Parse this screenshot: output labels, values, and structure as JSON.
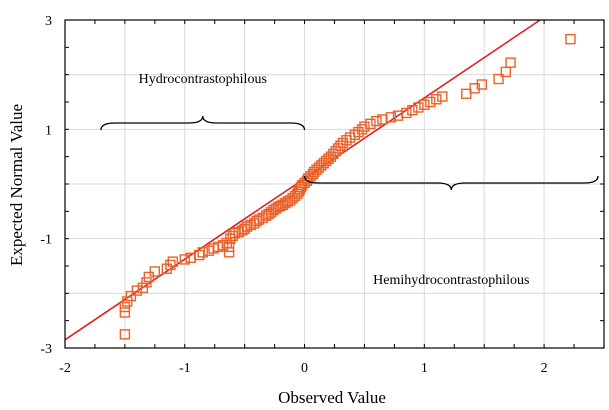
{
  "chart_data": {
    "type": "scatter",
    "title": "",
    "xlabel": "Observed Value",
    "ylabel": "Expected Normal Value",
    "xlim": [
      -2,
      2.5
    ],
    "ylim": [
      -3,
      3
    ],
    "xticks": [
      -2,
      -1,
      0,
      1,
      2
    ],
    "yticks": [
      -3,
      -1,
      1,
      3
    ],
    "xtick_labels": [
      "-2",
      "-1",
      "0",
      "1",
      "2"
    ],
    "ytick_labels": [
      "-3",
      "-1",
      "1",
      "3"
    ],
    "grid": true,
    "legend": "none",
    "colors": {
      "points": "#e8622a",
      "reference_line": "#e02020",
      "grid": "#d9d9d9"
    },
    "reference_line": {
      "name": "",
      "points": [
        [
          -2.0,
          -2.85
        ],
        [
          2.0,
          3.05
        ]
      ]
    },
    "annotations": [
      {
        "text": "Hydrocontrastophilous",
        "x_range": [
          -1.7,
          0.0
        ]
      },
      {
        "text": "Hemihydrocontrastophilous",
        "x_range": [
          0.0,
          2.45
        ]
      }
    ],
    "series": [
      {
        "marker": "open-square",
        "points": [
          [
            -1.5,
            -2.75
          ],
          [
            -1.5,
            -2.35
          ],
          [
            -1.48,
            -2.15
          ],
          [
            -1.5,
            -2.25
          ],
          [
            -1.45,
            -2.05
          ],
          [
            -1.4,
            -1.95
          ],
          [
            -1.35,
            -1.9
          ],
          [
            -1.32,
            -1.8
          ],
          [
            -1.3,
            -1.7
          ],
          [
            -1.25,
            -1.6
          ],
          [
            -1.15,
            -1.55
          ],
          [
            -1.12,
            -1.48
          ],
          [
            -1.1,
            -1.42
          ],
          [
            -1.0,
            -1.38
          ],
          [
            -0.95,
            -1.35
          ],
          [
            -0.88,
            -1.3
          ],
          [
            -0.85,
            -1.25
          ],
          [
            -0.8,
            -1.22
          ],
          [
            -0.76,
            -1.18
          ],
          [
            -0.72,
            -1.15
          ],
          [
            -0.68,
            -1.12
          ],
          [
            -0.65,
            -1.08
          ],
          [
            -0.62,
            -1.0
          ],
          [
            -0.63,
            -1.15
          ],
          [
            -0.63,
            -1.25
          ],
          [
            -0.6,
            -0.95
          ],
          [
            -0.58,
            -0.9
          ],
          [
            -0.55,
            -0.88
          ],
          [
            -0.52,
            -0.85
          ],
          [
            -0.5,
            -0.82
          ],
          [
            -0.48,
            -0.78
          ],
          [
            -0.45,
            -0.75
          ],
          [
            -0.42,
            -0.72
          ],
          [
            -0.4,
            -0.68
          ],
          [
            -0.38,
            -0.65
          ],
          [
            -0.35,
            -0.62
          ],
          [
            -0.32,
            -0.58
          ],
          [
            -0.3,
            -0.55
          ],
          [
            -0.28,
            -0.52
          ],
          [
            -0.26,
            -0.48
          ],
          [
            -0.24,
            -0.45
          ],
          [
            -0.22,
            -0.42
          ],
          [
            -0.2,
            -0.4
          ],
          [
            -0.18,
            -0.38
          ],
          [
            -0.16,
            -0.35
          ],
          [
            -0.14,
            -0.32
          ],
          [
            -0.12,
            -0.3
          ],
          [
            -0.1,
            -0.26
          ],
          [
            -0.08,
            -0.22
          ],
          [
            -0.06,
            -0.18
          ],
          [
            -0.05,
            -0.14
          ],
          [
            -0.04,
            -0.1
          ],
          [
            -0.03,
            -0.06
          ],
          [
            -0.02,
            -0.02
          ],
          [
            0.0,
            0.02
          ],
          [
            0.02,
            0.06
          ],
          [
            0.03,
            0.1
          ],
          [
            0.05,
            0.14
          ],
          [
            0.07,
            0.18
          ],
          [
            0.08,
            0.22
          ],
          [
            0.1,
            0.26
          ],
          [
            0.12,
            0.3
          ],
          [
            0.14,
            0.34
          ],
          [
            0.16,
            0.38
          ],
          [
            0.18,
            0.42
          ],
          [
            0.2,
            0.46
          ],
          [
            0.22,
            0.5
          ],
          [
            0.24,
            0.55
          ],
          [
            0.26,
            0.6
          ],
          [
            0.28,
            0.65
          ],
          [
            0.3,
            0.7
          ],
          [
            0.32,
            0.75
          ],
          [
            0.35,
            0.8
          ],
          [
            0.38,
            0.85
          ],
          [
            0.42,
            0.9
          ],
          [
            0.45,
            0.95
          ],
          [
            0.48,
            1.0
          ],
          [
            0.5,
            1.05
          ],
          [
            0.55,
            1.1
          ],
          [
            0.6,
            1.15
          ],
          [
            0.65,
            1.18
          ],
          [
            0.72,
            1.22
          ],
          [
            0.78,
            1.25
          ],
          [
            0.85,
            1.3
          ],
          [
            0.9,
            1.35
          ],
          [
            0.95,
            1.4
          ],
          [
            1.0,
            1.45
          ],
          [
            1.05,
            1.5
          ],
          [
            1.1,
            1.55
          ],
          [
            1.15,
            1.6
          ],
          [
            1.35,
            1.65
          ],
          [
            1.42,
            1.75
          ],
          [
            1.48,
            1.82
          ],
          [
            1.62,
            1.92
          ],
          [
            1.68,
            2.05
          ],
          [
            1.72,
            2.22
          ],
          [
            2.22,
            2.65
          ]
        ]
      }
    ]
  }
}
